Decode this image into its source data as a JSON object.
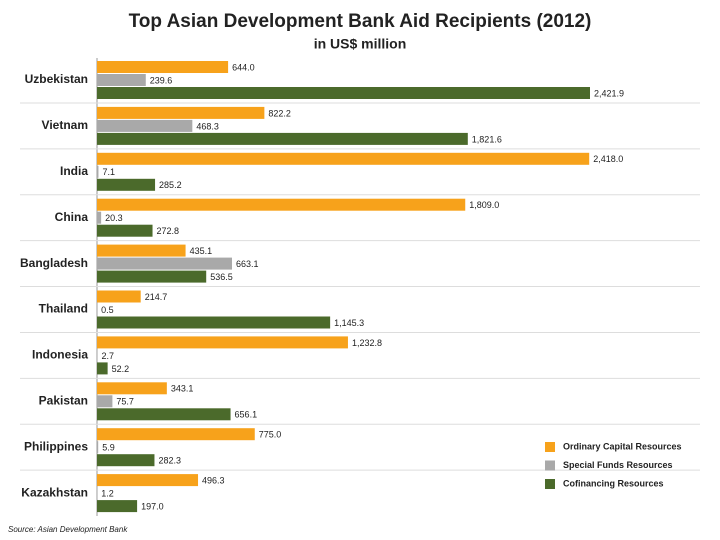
{
  "chart_data": {
    "type": "bar",
    "orientation": "horizontal",
    "title": "Top Asian Development Bank Aid Recipients (2012)",
    "subtitle": "in US$ million",
    "source": "Source: Asian Development Bank",
    "categories": [
      "Uzbekistan",
      "Vietnam",
      "India",
      "China",
      "Bangladesh",
      "Thailand",
      "Indonesia",
      "Pakistan",
      "Philippines",
      "Kazakhstan"
    ],
    "series": [
      {
        "name": "Ordinary Capital Resources",
        "color": "#f7a21b",
        "values": [
          644.0,
          822.2,
          2418.0,
          1809.0,
          435.1,
          214.7,
          1232.8,
          343.1,
          775.0,
          496.3
        ],
        "value_labels": [
          "644.0",
          "822.2",
          "2,418.0",
          "1,809.0",
          "435.1",
          "214.7",
          "1,232.8",
          "343.1",
          "775.0",
          "496.3"
        ]
      },
      {
        "name": "Special Funds Resources",
        "color": "#a9a9a9",
        "values": [
          239.6,
          468.3,
          7.1,
          20.3,
          663.1,
          0.5,
          2.7,
          75.7,
          5.9,
          1.2
        ],
        "value_labels": [
          "239.6",
          "468.3",
          "7.1",
          "20.3",
          "663.1",
          "0.5",
          "2.7",
          "75.7",
          "5.9",
          "1.2"
        ]
      },
      {
        "name": "Cofinancing Resources",
        "color": "#4b6a2b",
        "values": [
          2421.9,
          1821.6,
          285.2,
          272.8,
          536.5,
          1145.3,
          52.2,
          656.1,
          282.3,
          197.0
        ],
        "value_labels": [
          "2,421.9",
          "1,821.6",
          "285.2",
          "272.8",
          "536.5",
          "1,145.3",
          "52.2",
          "656.1",
          "282.3",
          "197.0"
        ]
      }
    ],
    "legend": "bottom-right"
  }
}
